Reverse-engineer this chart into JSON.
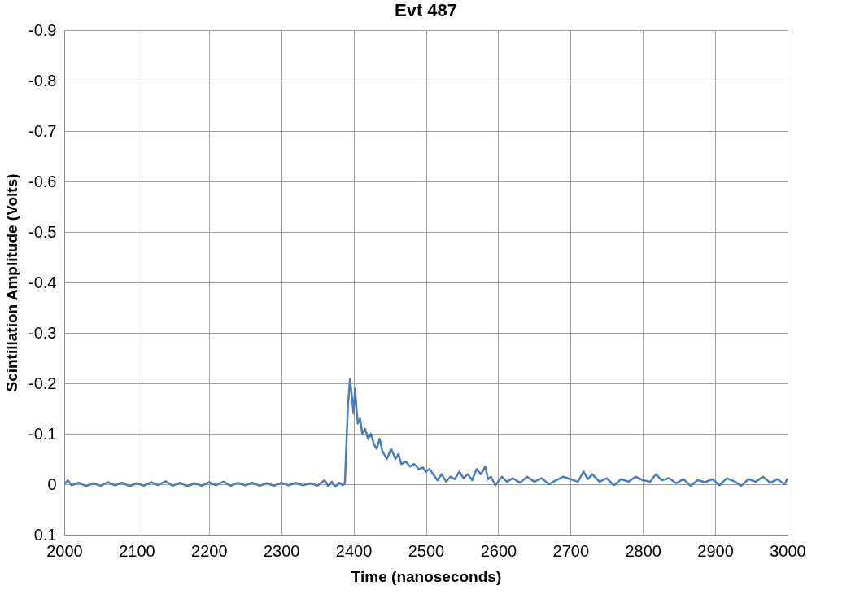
{
  "chart_data": {
    "type": "line",
    "title": "Evt 487",
    "xlabel": "Time (nanoseconds)",
    "ylabel": "Scintillation Amplitude (Volts)",
    "xlim": [
      2000,
      3000
    ],
    "xticks": [
      2000,
      2100,
      2200,
      2300,
      2400,
      2500,
      2600,
      2700,
      2800,
      2900,
      3000
    ],
    "ylim": [
      0.1,
      -0.9
    ],
    "yticks": [
      -0.9,
      -0.8,
      -0.7,
      -0.6,
      -0.5,
      -0.4,
      -0.3,
      -0.2,
      -0.1,
      0,
      0.1
    ],
    "grid": true,
    "marker": "none",
    "line_style": "solid",
    "series": [
      {
        "color": "#4a7ebb",
        "x": [
          2000,
          2005,
          2010,
          2020,
          2030,
          2040,
          2050,
          2060,
          2070,
          2080,
          2090,
          2100,
          2110,
          2120,
          2130,
          2140,
          2150,
          2160,
          2170,
          2180,
          2190,
          2200,
          2210,
          2220,
          2230,
          2240,
          2250,
          2260,
          2270,
          2280,
          2290,
          2300,
          2310,
          2320,
          2330,
          2340,
          2350,
          2360,
          2365,
          2370,
          2375,
          2380,
          2385,
          2388,
          2392,
          2395,
          2398,
          2400,
          2402,
          2404,
          2406,
          2409,
          2412,
          2416,
          2420,
          2424,
          2428,
          2432,
          2436,
          2440,
          2446,
          2452,
          2458,
          2462,
          2466,
          2472,
          2478,
          2484,
          2490,
          2496,
          2500,
          2505,
          2510,
          2516,
          2522,
          2528,
          2534,
          2540,
          2546,
          2552,
          2558,
          2564,
          2570,
          2576,
          2582,
          2586,
          2590,
          2596,
          2605,
          2612,
          2620,
          2630,
          2640,
          2650,
          2660,
          2670,
          2680,
          2690,
          2700,
          2710,
          2718,
          2724,
          2730,
          2740,
          2750,
          2760,
          2770,
          2780,
          2790,
          2800,
          2810,
          2818,
          2826,
          2836,
          2846,
          2856,
          2866,
          2876,
          2886,
          2896,
          2906,
          2916,
          2926,
          2936,
          2946,
          2956,
          2966,
          2976,
          2986,
          2996,
          3000
        ],
        "values": [
          0.0,
          -0.008,
          0.002,
          -0.003,
          0.004,
          -0.002,
          0.003,
          -0.004,
          0.002,
          -0.003,
          0.004,
          -0.002,
          0.003,
          -0.004,
          0.002,
          -0.006,
          0.003,
          -0.003,
          0.004,
          -0.002,
          0.003,
          -0.004,
          0.002,
          -0.005,
          0.003,
          -0.003,
          0.002,
          -0.003,
          0.003,
          -0.002,
          0.003,
          -0.003,
          0.002,
          -0.003,
          0.002,
          -0.002,
          0.003,
          -0.008,
          0.004,
          -0.005,
          0.005,
          -0.003,
          0.002,
          -0.002,
          -0.15,
          -0.208,
          -0.17,
          -0.14,
          -0.19,
          -0.15,
          -0.12,
          -0.13,
          -0.1,
          -0.11,
          -0.09,
          -0.1,
          -0.08,
          -0.07,
          -0.09,
          -0.065,
          -0.05,
          -0.07,
          -0.05,
          -0.06,
          -0.04,
          -0.045,
          -0.035,
          -0.04,
          -0.03,
          -0.033,
          -0.025,
          -0.03,
          -0.02,
          -0.008,
          -0.02,
          -0.005,
          -0.015,
          -0.01,
          -0.025,
          -0.012,
          -0.02,
          -0.008,
          -0.03,
          -0.02,
          -0.035,
          -0.01,
          -0.015,
          0.002,
          -0.015,
          -0.005,
          -0.012,
          -0.003,
          -0.015,
          -0.005,
          -0.012,
          0.0,
          -0.008,
          -0.015,
          -0.01,
          -0.005,
          -0.025,
          -0.01,
          -0.02,
          -0.005,
          -0.012,
          0.002,
          -0.01,
          -0.005,
          -0.015,
          -0.008,
          -0.005,
          -0.02,
          -0.008,
          -0.012,
          -0.002,
          -0.01,
          0.003,
          -0.008,
          -0.004,
          -0.01,
          0.002,
          -0.012,
          -0.006,
          0.003,
          -0.01,
          -0.005,
          -0.015,
          -0.003,
          -0.01,
          0.0,
          -0.012
        ]
      }
    ]
  }
}
